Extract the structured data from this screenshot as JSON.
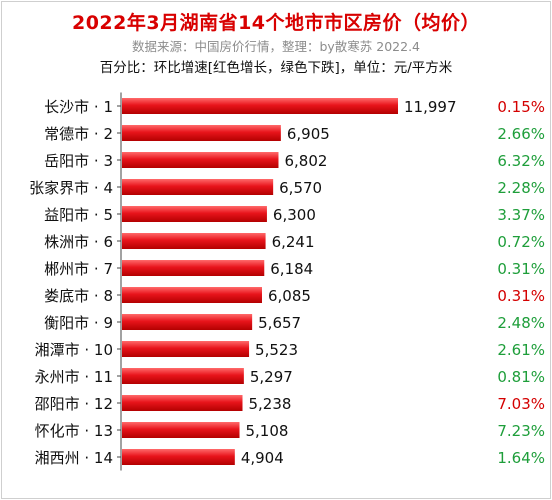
{
  "chart_data": {
    "type": "bar",
    "orientation": "horizontal",
    "title": "2022年3月湖南省14个地市市区房价（均价）",
    "subtitle": "数据来源：中国房价行情，整理：by散寒苏 2022.4",
    "note": "百分比：环比增速[红色增长，绿色下跌]，单位：元/平方米",
    "categories": [
      "长沙市 · 1",
      "常德市 · 2",
      "岳阳市 · 3",
      "张家界市 · 4",
      "益阳市 · 5",
      "株洲市 · 6",
      "郴州市 · 7",
      "娄底市 · 8",
      "衡阳市 · 9",
      "湘潭市 · 10",
      "永州市 · 11",
      "邵阳市 · 12",
      "怀化市 · 13",
      "湘西州 · 14"
    ],
    "values": [
      11997,
      6905,
      6802,
      6570,
      6300,
      6241,
      6184,
      6085,
      5657,
      5523,
      5297,
      5238,
      5108,
      4904
    ],
    "value_labels": [
      "11,997",
      "6,905",
      "6,802",
      "6,570",
      "6,300",
      "6,241",
      "6,184",
      "6,085",
      "5,657",
      "5,523",
      "5,297",
      "5,238",
      "5,108",
      "4,904"
    ],
    "changes": [
      "0.15%",
      "2.66%",
      "6.32%",
      "2.28%",
      "3.37%",
      "0.72%",
      "0.31%",
      "0.31%",
      "2.48%",
      "2.61%",
      "0.81%",
      "7.03%",
      "7.23%",
      "1.64%"
    ],
    "change_direction": [
      "up",
      "down",
      "down",
      "down",
      "down",
      "down",
      "down",
      "up",
      "down",
      "down",
      "down",
      "up",
      "down",
      "down"
    ],
    "xlim": [
      0,
      11997
    ],
    "grid": false,
    "legend": "none"
  },
  "colors": {
    "title": "#d80000",
    "bar": "#e8141b",
    "increase": "#d40000",
    "decrease": "#1e9e3a",
    "text": "#111111",
    "subtitle": "#8c8c8c"
  }
}
